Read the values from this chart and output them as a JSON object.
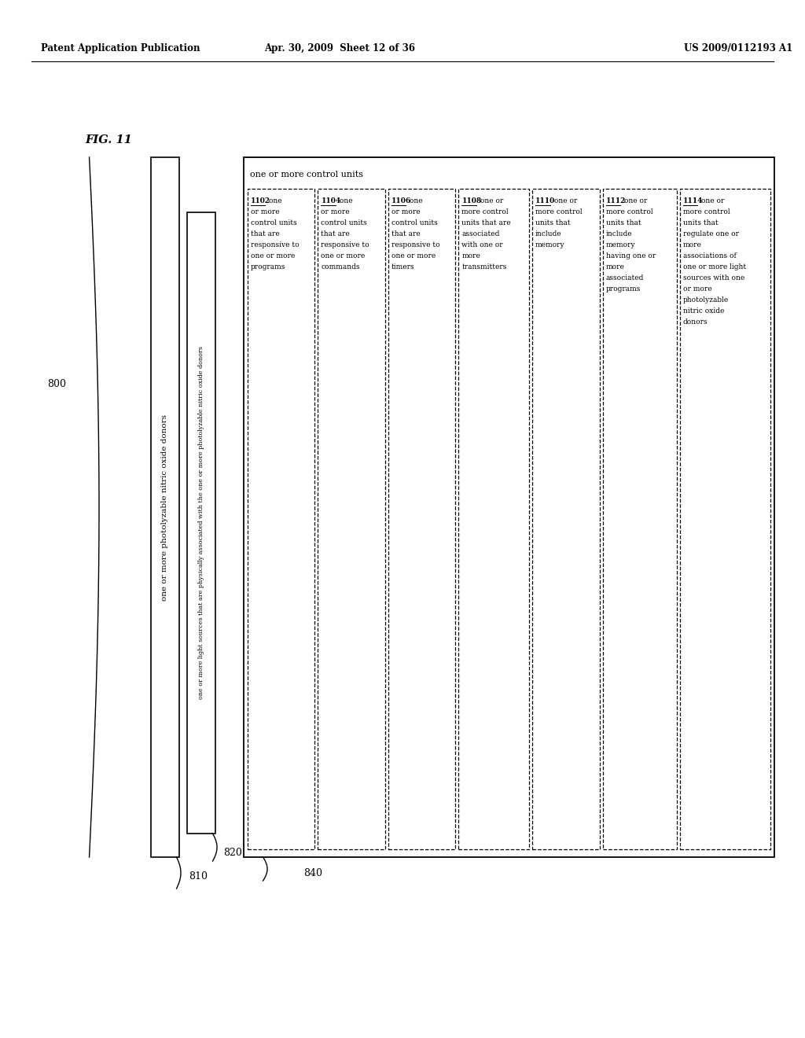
{
  "header_left": "Patent Application Publication",
  "header_mid": "Apr. 30, 2009  Sheet 12 of 36",
  "header_right": "US 2009/0112193 A1",
  "fig_label": "FIG. 11",
  "bg_color": "#ffffff",
  "label_800": "800",
  "label_810": "810",
  "label_820": "820",
  "label_840": "840",
  "text_810": "one or more photolyzable nitric oxide donors",
  "text_820": "one or more light sources that are physically associated with the one or more photolyzable nitric oxide donors",
  "text_840_top": "one or more control units",
  "text_840_sub": "one or more control units",
  "sub_boxes": [
    {
      "id": "1102",
      "lines": [
        "1102  one",
        "or more",
        "control units",
        "that are",
        "responsive to",
        "one or more",
        "programs"
      ]
    },
    {
      "id": "1104",
      "lines": [
        "1104  one",
        "or more",
        "control units",
        "that are",
        "responsive to",
        "one or more",
        "commands"
      ]
    },
    {
      "id": "1106",
      "lines": [
        "1106  one",
        "or more",
        "control units",
        "that are",
        "responsive to",
        "one or more",
        "timers"
      ]
    },
    {
      "id": "1108",
      "lines": [
        "1108  one or",
        "more control",
        "units that are",
        "associated",
        "with one or",
        "more",
        "transmitters"
      ]
    },
    {
      "id": "1110",
      "lines": [
        "1110  one or",
        "more control",
        "units that",
        "include",
        "memory"
      ]
    },
    {
      "id": "1112",
      "lines": [
        "1112  one or",
        "more control",
        "units that",
        "include",
        "memory",
        "having one or",
        "more",
        "associated",
        "programs"
      ]
    },
    {
      "id": "1114",
      "lines": [
        "1114  one or",
        "more control",
        "units that",
        "regulate one or",
        "more",
        "associations of",
        "one or more light",
        "sources with one",
        "or more",
        "photolyzable",
        "nitric oxide",
        "donors"
      ]
    }
  ]
}
